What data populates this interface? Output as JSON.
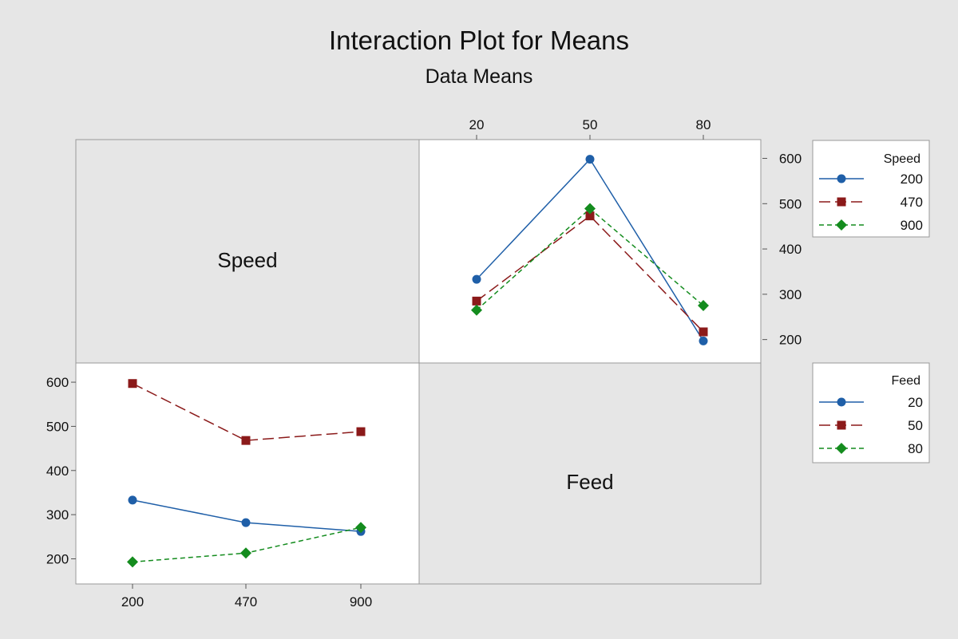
{
  "chart_data": {
    "type": "line",
    "title": "Interaction Plot for Means",
    "subtitle": "Data Means",
    "panels": [
      {
        "label": "Speed",
        "x_factor": "Feed",
        "trace_factor": "Speed",
        "categories": [
          "20",
          "50",
          "80"
        ],
        "ylim": [
          180,
          615
        ],
        "yticks": [
          200,
          300,
          400,
          500,
          600
        ],
        "series": [
          {
            "name": "200",
            "values": [
              333,
              598,
              197
            ],
            "color": "#1f5fa8",
            "marker": "circle",
            "dash": "solid"
          },
          {
            "name": "470",
            "values": [
              285,
              473,
              217
            ],
            "color": "#8b1a1a",
            "marker": "square",
            "dash": "longdash"
          },
          {
            "name": "900",
            "values": [
              265,
              489,
              275
            ],
            "color": "#148c1e",
            "marker": "diamond",
            "dash": "shortdash"
          }
        ]
      },
      {
        "label": "Feed",
        "x_factor": "Speed",
        "trace_factor": "Feed",
        "categories": [
          "200",
          "470",
          "900"
        ],
        "ylim": [
          172,
          620
        ],
        "yticks": [
          200,
          300,
          400,
          500,
          600
        ],
        "series": [
          {
            "name": "20",
            "values": [
              333,
              282,
              262
            ],
            "color": "#1f5fa8",
            "marker": "circle",
            "dash": "solid"
          },
          {
            "name": "50",
            "values": [
              597,
              468,
              488
            ],
            "color": "#8b1a1a",
            "marker": "square",
            "dash": "longdash"
          },
          {
            "name": "80",
            "values": [
              193,
              213,
              271
            ],
            "color": "#148c1e",
            "marker": "diamond",
            "dash": "shortdash"
          }
        ]
      }
    ],
    "legends": [
      {
        "title": "Speed",
        "entries": [
          "200",
          "470",
          "900"
        ]
      },
      {
        "title": "Feed",
        "entries": [
          "20",
          "50",
          "80"
        ]
      }
    ],
    "colors": {
      "background": "#e6e6e6",
      "panel_white": "#ffffff",
      "panel_grey": "#e6e6e6",
      "border": "#999999"
    }
  }
}
